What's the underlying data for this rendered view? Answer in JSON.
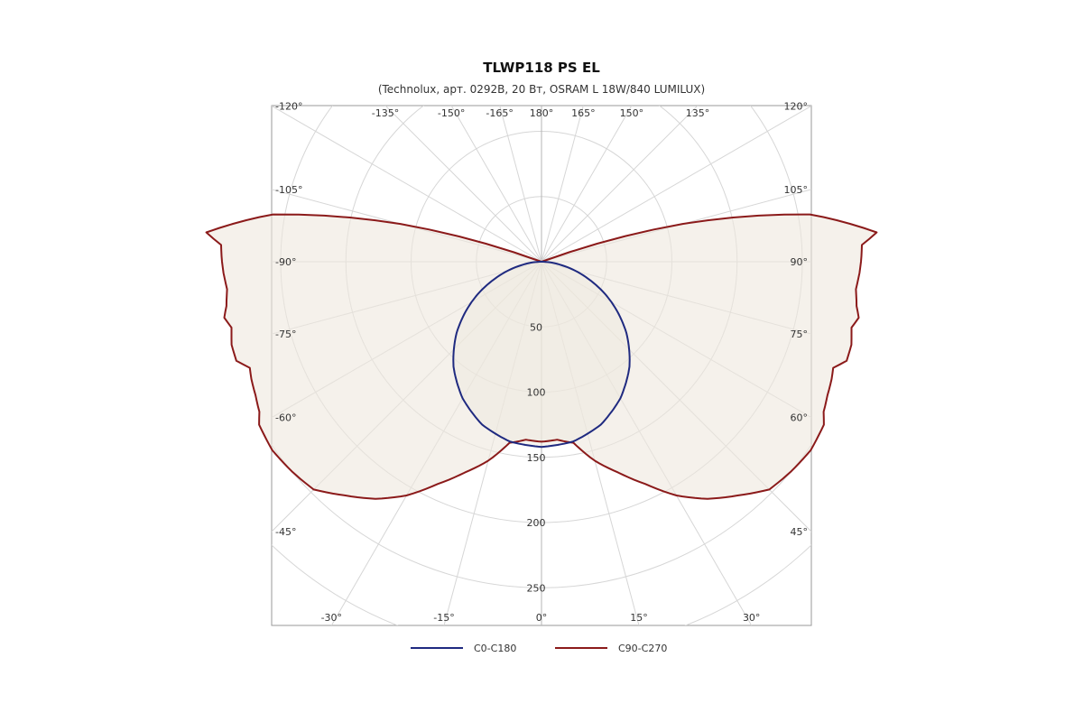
{
  "chart_data": {
    "type": "polar",
    "title": "TLWP118 PS EL",
    "subtitle": "(Technolux, арт. 0292B, 20 Вт, OSRAM L 18W/840 LUMILUX)",
    "angle_labels": [
      {
        "angle": -120,
        "label": "-120°"
      },
      {
        "angle": -135,
        "label": "-135°"
      },
      {
        "angle": -150,
        "label": "-150°"
      },
      {
        "angle": -165,
        "label": "-165°"
      },
      {
        "angle": 180,
        "label": "180°"
      },
      {
        "angle": 165,
        "label": "165°"
      },
      {
        "angle": 150,
        "label": "150°"
      },
      {
        "angle": 135,
        "label": "135°"
      },
      {
        "angle": 120,
        "label": "120°"
      },
      {
        "angle": -105,
        "label": "-105°"
      },
      {
        "angle": 105,
        "label": "105°"
      },
      {
        "angle": -90,
        "label": "-90°"
      },
      {
        "angle": 90,
        "label": "90°"
      },
      {
        "angle": -75,
        "label": "-75°"
      },
      {
        "angle": 75,
        "label": "75°"
      },
      {
        "angle": -60,
        "label": "-60°"
      },
      {
        "angle": 60,
        "label": "60°"
      },
      {
        "angle": -45,
        "label": "-45°"
      },
      {
        "angle": 45,
        "label": "45°"
      },
      {
        "angle": -30,
        "label": "-30°"
      },
      {
        "angle": -15,
        "label": "-15°"
      },
      {
        "angle": 0,
        "label": "0°"
      },
      {
        "angle": 15,
        "label": "15°"
      },
      {
        "angle": 30,
        "label": "30°"
      }
    ],
    "radial_ticks": [
      50,
      100,
      150,
      200,
      250
    ],
    "radial_tick_labels": [
      "50",
      "100",
      "150",
      "200",
      "250"
    ],
    "r_max": 300,
    "angle_step": 15,
    "series": [
      {
        "name": "C0-C180",
        "color": "#1f2a80",
        "angles": [
          0,
          10,
          20,
          30,
          40,
          50,
          60,
          70,
          80,
          90
        ],
        "intensity": [
          142,
          140,
          133,
          121,
          105,
          85,
          62,
          38,
          16,
          0
        ]
      },
      {
        "name": "C90-C270",
        "color": "#8b1a1a",
        "angles": [
          0,
          5,
          10,
          15,
          20,
          25,
          30,
          35,
          40,
          45,
          50,
          55,
          60,
          62,
          65,
          68,
          70,
          72,
          75,
          78,
          80,
          82,
          85,
          88,
          90,
          93,
          95,
          100,
          105,
          110
        ],
        "intensity": [
          138,
          137,
          141,
          158,
          172,
          188,
          207,
          222,
          234,
          247,
          250,
          252,
          250,
          245,
          242,
          240,
          238,
          246,
          246,
          243,
          247,
          244,
          242,
          244,
          245,
          246,
          258,
          209,
          112,
          0
        ]
      }
    ],
    "grid": true,
    "legend_position": "bottom"
  }
}
